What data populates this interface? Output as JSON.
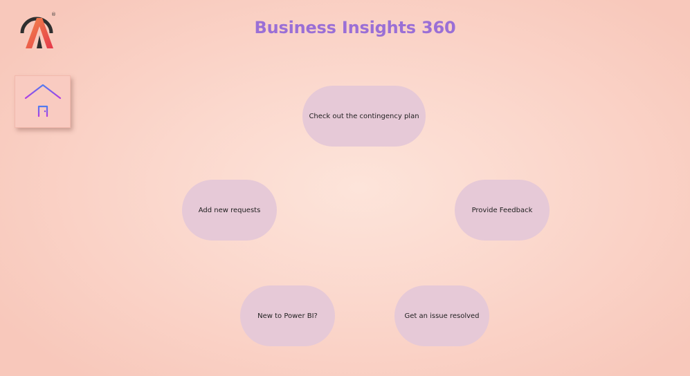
{
  "header": {
    "logo_icon": "brand-a-logo",
    "logo_mark": "®",
    "title": "Business Insights 360"
  },
  "sidebar": {
    "home_icon": "home-icon"
  },
  "menu": {
    "contingency": "Check out the contingency plan",
    "add_requests": "Add new requests",
    "feedback": "Provide Feedback",
    "power_bi": "New to Power BI?",
    "issue": "Get an issue resolved"
  },
  "colors": {
    "title": "#9a6fd6",
    "pill": "#e6c9d7",
    "home_tile": "#f9cbc1"
  }
}
